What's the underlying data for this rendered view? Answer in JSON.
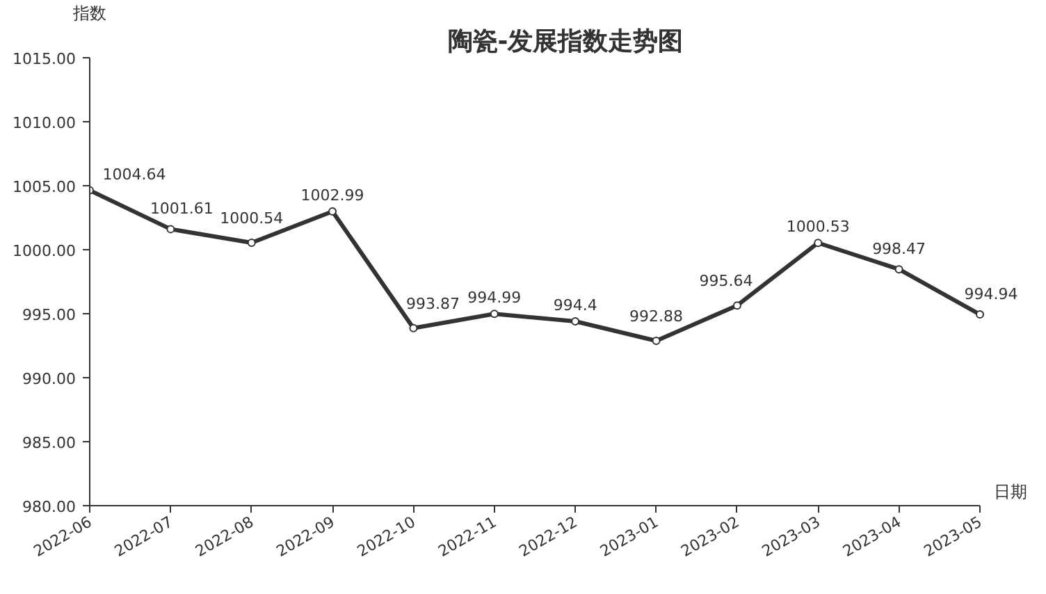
{
  "chart_data": {
    "type": "line",
    "title": "陶瓷-发展指数走势图",
    "xlabel": "日期",
    "ylabel": "指数",
    "categories": [
      "2022-06",
      "2022-07",
      "2022-08",
      "2022-09",
      "2022-10",
      "2022-11",
      "2022-12",
      "2023-01",
      "2023-02",
      "2023-03",
      "2023-04",
      "2023-05"
    ],
    "series": [
      {
        "color": "#333333",
        "values": [
          1004.64,
          1001.61,
          1000.54,
          1002.99,
          993.87,
          994.99,
          994.4,
          992.88,
          995.64,
          1000.53,
          998.47,
          994.94
        ]
      }
    ],
    "ylim": [
      980,
      1015
    ],
    "yticks": [
      {
        "value": 980,
        "label": "980.00"
      },
      {
        "value": 985,
        "label": "985.00"
      },
      {
        "value": 990,
        "label": "990.00"
      },
      {
        "value": 995,
        "label": "995.00"
      },
      {
        "value": 1000,
        "label": "1000.00"
      },
      {
        "value": 1005,
        "label": "1005.00"
      },
      {
        "value": 1010,
        "label": "1010.00"
      },
      {
        "value": 1015,
        "label": "1015.00"
      }
    ],
    "data_labels": true,
    "marker": "circle",
    "line_style": "solid",
    "grid": false
  }
}
